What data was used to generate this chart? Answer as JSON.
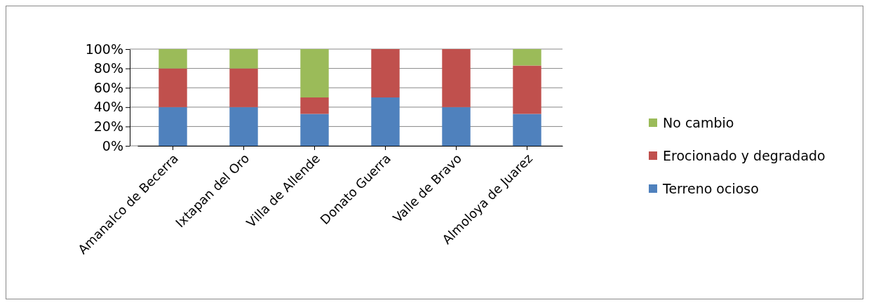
{
  "chart_data": {
    "type": "bar",
    "stacked": true,
    "categories": [
      "Amanalco de Becerra",
      "Ixtapan del Oro",
      "Villa de Allende",
      "Donato Guerra",
      "Valle de Bravo",
      "Almoloya de Juarez"
    ],
    "series": [
      {
        "name": "Terreno ocioso",
        "color": "#4f81bd",
        "values": [
          40,
          40,
          33,
          50,
          40,
          33
        ]
      },
      {
        "name": "Erocionado y degradado",
        "color": "#c0504d",
        "values": [
          40,
          40,
          17,
          50,
          60,
          50
        ]
      },
      {
        "name": "No cambio",
        "color": "#9bbb59",
        "values": [
          20,
          20,
          50,
          0,
          0,
          17
        ]
      }
    ],
    "ylim": [
      0,
      100
    ],
    "yticks": [
      {
        "value": 0,
        "label": "0%"
      },
      {
        "value": 20,
        "label": "20%"
      },
      {
        "value": 40,
        "label": "40%"
      },
      {
        "value": 60,
        "label": "60%"
      },
      {
        "value": 80,
        "label": "80%"
      },
      {
        "value": 100,
        "label": "100%"
      }
    ],
    "grid": "y",
    "legend": "right"
  }
}
